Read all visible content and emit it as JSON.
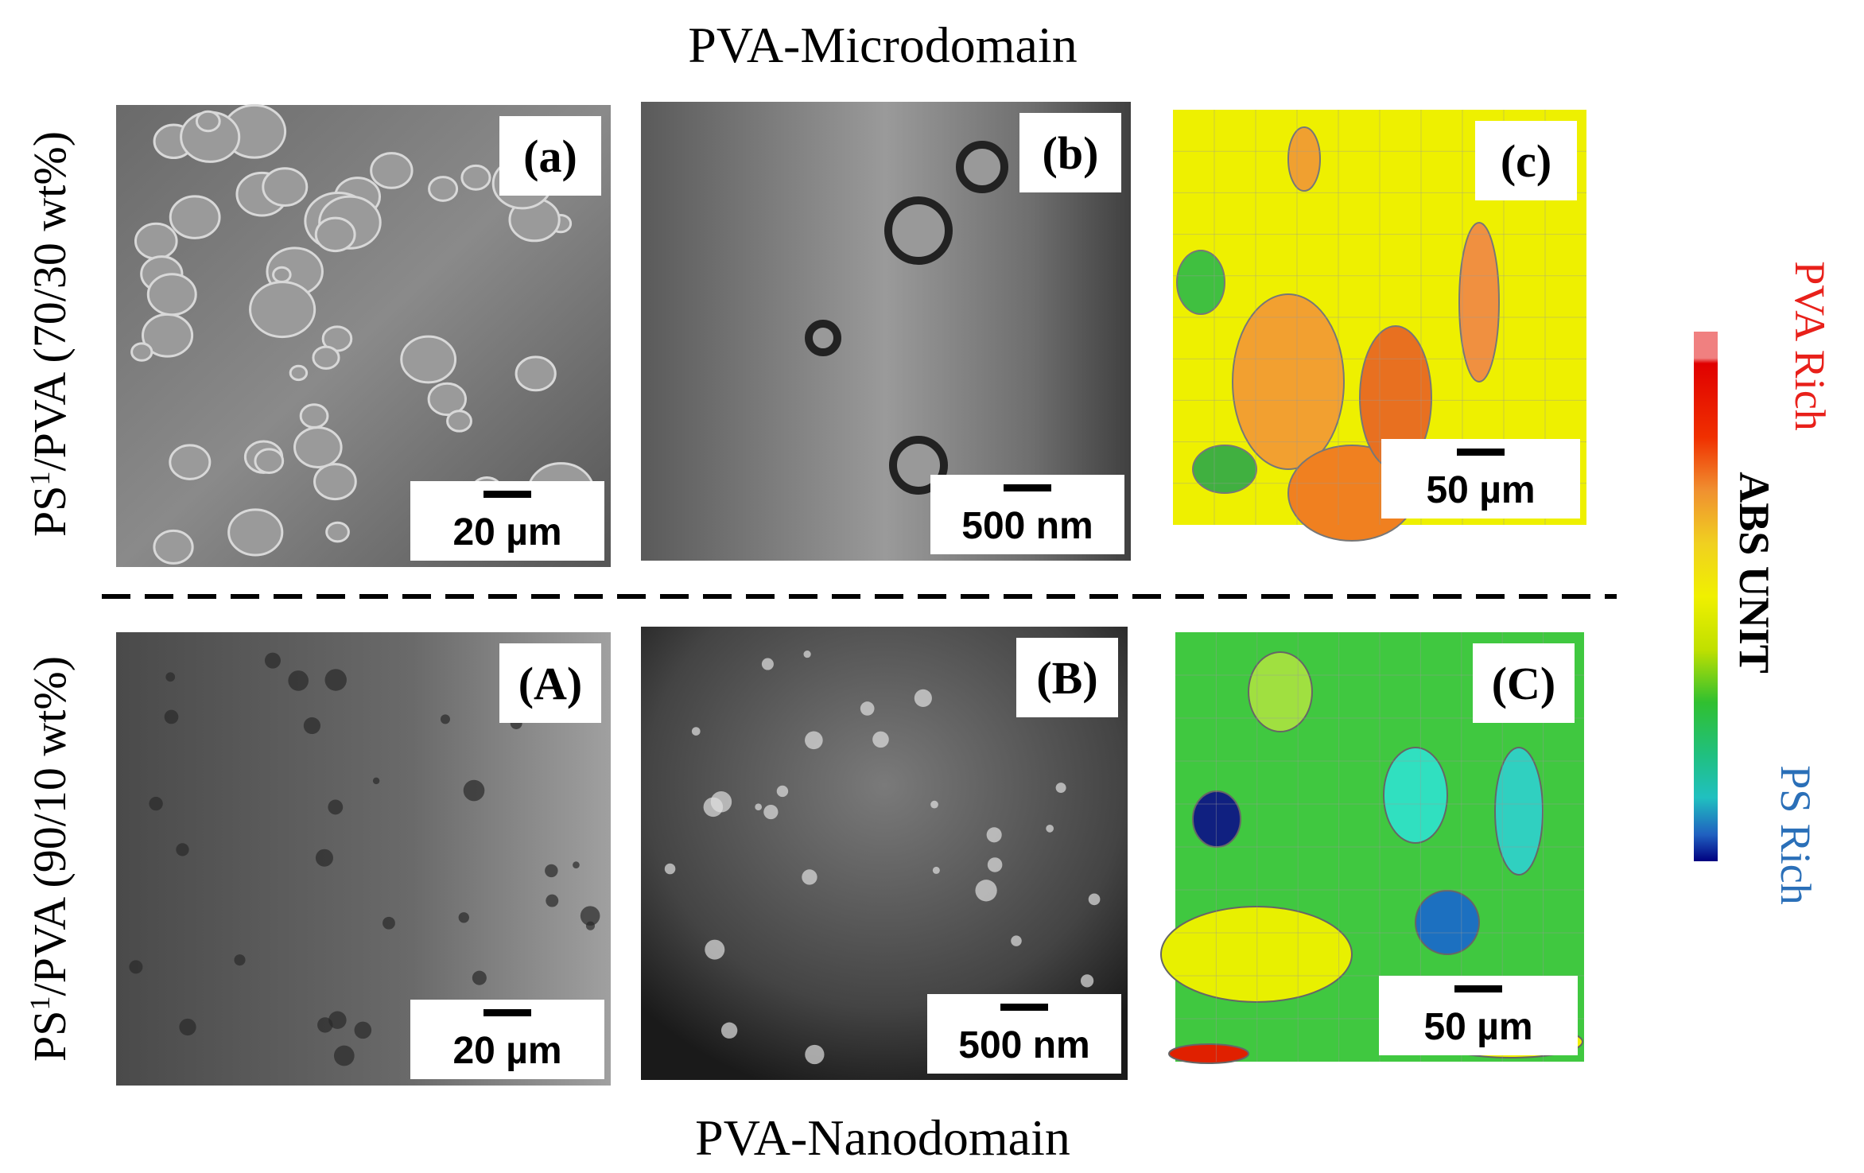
{
  "figure": {
    "top_title": "PVA-Microdomain",
    "bottom_title": "PVA-Nanodomain",
    "rows": [
      {
        "label_main": "PS",
        "label_sup": "1",
        "label_rest": "/PVA (70/30 wt%)",
        "panels": [
          {
            "tag": "(a)",
            "scale": "20 µm"
          },
          {
            "tag": "(b)",
            "scale": "500 nm"
          },
          {
            "tag": "(c)",
            "scale": "50 µm"
          }
        ]
      },
      {
        "label_main": "PS",
        "label_sup": "1",
        "label_rest": "/PVA (90/10 wt%)",
        "panels": [
          {
            "tag": "(A)",
            "scale": "20 µm"
          },
          {
            "tag": "(B)",
            "scale": "500 nm"
          },
          {
            "tag": "(C)",
            "scale": "50 µm"
          }
        ]
      }
    ],
    "colorbar": {
      "title": "ABS UNIT",
      "high": "PVA Rich",
      "low": "PS Rich"
    }
  }
}
